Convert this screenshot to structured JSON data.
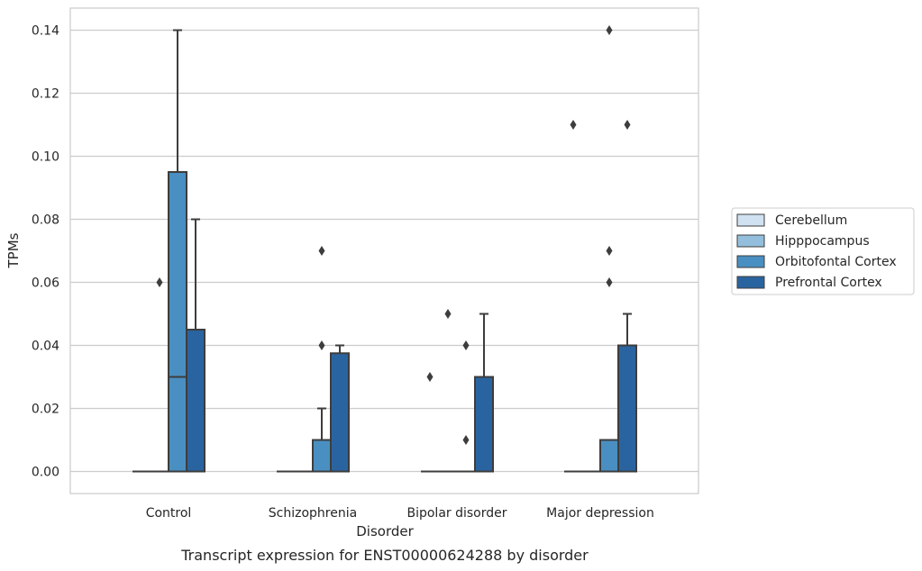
{
  "chart_data": {
    "type": "boxplot",
    "title": "",
    "caption": "Transcript expression for ENST00000624288 by disorder",
    "xlabel": "Disorder",
    "ylabel": "TPMs",
    "ylim": [
      -0.007,
      0.147
    ],
    "yticks": [
      0.0,
      0.02,
      0.04,
      0.06,
      0.08,
      0.1,
      0.12,
      0.14
    ],
    "ytick_labels": [
      "0.00",
      "0.02",
      "0.04",
      "0.06",
      "0.08",
      "0.10",
      "0.12",
      "0.14"
    ],
    "grid": true,
    "legend_position": "right, outside plot",
    "categories": [
      "Control",
      "Schizophrenia",
      "Bipolar disorder",
      "Major depression"
    ],
    "series": [
      {
        "name": "Cerebellum",
        "color": "#d0e1f1",
        "boxes": [
          {
            "q1": 0.0,
            "median": 0.0,
            "q3": 0.0,
            "whislo": 0.0,
            "whishi": 0.0,
            "fliers": []
          },
          {
            "q1": 0.0,
            "median": 0.0,
            "q3": 0.0,
            "whislo": 0.0,
            "whishi": 0.0,
            "fliers": []
          },
          {
            "q1": 0.0,
            "median": 0.0,
            "q3": 0.0,
            "whislo": 0.0,
            "whishi": 0.0,
            "fliers": [
              0.03
            ]
          },
          {
            "q1": 0.0,
            "median": 0.0,
            "q3": 0.0,
            "whislo": 0.0,
            "whishi": 0.0,
            "fliers": [
              0.11
            ]
          }
        ]
      },
      {
        "name": "Hipppocampus",
        "color": "#93bfdc",
        "boxes": [
          {
            "q1": 0.0,
            "median": 0.0,
            "q3": 0.0,
            "whislo": 0.0,
            "whishi": 0.0,
            "fliers": [
              0.06
            ]
          },
          {
            "q1": 0.0,
            "median": 0.0,
            "q3": 0.0,
            "whislo": 0.0,
            "whishi": 0.0,
            "fliers": []
          },
          {
            "q1": 0.0,
            "median": 0.0,
            "q3": 0.0,
            "whislo": 0.0,
            "whishi": 0.0,
            "fliers": [
              0.05
            ]
          },
          {
            "q1": 0.0,
            "median": 0.0,
            "q3": 0.0,
            "whislo": 0.0,
            "whishi": 0.0,
            "fliers": []
          }
        ]
      },
      {
        "name": "Orbitofontal Cortex",
        "color": "#4a8fc1",
        "boxes": [
          {
            "q1": 0.0,
            "median": 0.03,
            "q3": 0.095,
            "whislo": 0.0,
            "whishi": 0.14,
            "fliers": []
          },
          {
            "q1": 0.0,
            "median": 0.0,
            "q3": 0.01,
            "whislo": 0.0,
            "whishi": 0.02,
            "fliers": [
              0.04,
              0.07
            ]
          },
          {
            "q1": 0.0,
            "median": 0.0,
            "q3": 0.0,
            "whislo": 0.0,
            "whishi": 0.0,
            "fliers": [
              0.01,
              0.04
            ]
          },
          {
            "q1": 0.0,
            "median": 0.0,
            "q3": 0.01,
            "whislo": 0.0,
            "whishi": 0.01,
            "fliers": [
              0.06,
              0.07,
              0.14
            ]
          }
        ]
      },
      {
        "name": "Prefrontal Cortex",
        "color": "#2a64a0",
        "boxes": [
          {
            "q1": 0.0,
            "median": 0.0,
            "q3": 0.045,
            "whislo": 0.0,
            "whishi": 0.08,
            "fliers": []
          },
          {
            "q1": 0.0,
            "median": 0.0,
            "q3": 0.0375,
            "whislo": 0.0,
            "whishi": 0.04,
            "fliers": []
          },
          {
            "q1": 0.0,
            "median": 0.0,
            "q3": 0.03,
            "whislo": 0.0,
            "whishi": 0.05,
            "fliers": []
          },
          {
            "q1": 0.0,
            "median": 0.0,
            "q3": 0.04,
            "whislo": 0.0,
            "whishi": 0.05,
            "fliers": [
              0.11
            ]
          }
        ]
      }
    ]
  }
}
